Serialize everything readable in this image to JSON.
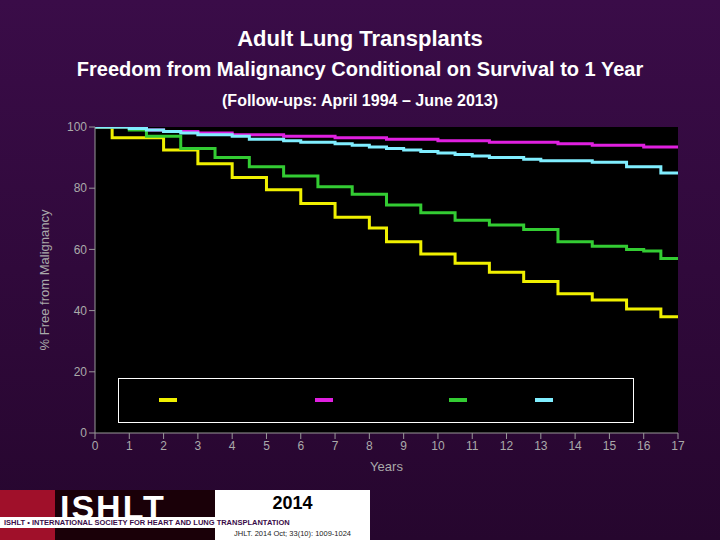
{
  "chart_data": {
    "type": "line",
    "line_style": "step",
    "title": "Adult Lung Transplants",
    "subtitle": [
      "Freedom from Malignancy Conditional on Survival to 1 Year",
      "(Follow-ups: April 1994 – June 2013)"
    ],
    "x_label": "Years",
    "y_label": "% Free from Malignancy",
    "x": [
      0,
      0.5,
      1,
      1.5,
      2,
      2.5,
      3,
      3.5,
      4,
      4.5,
      5,
      5.5,
      6,
      6.5,
      7,
      7.5,
      8,
      8.5,
      9,
      9.5,
      10,
      10.5,
      11,
      11.5,
      12,
      12.5,
      13,
      13.5,
      14,
      14.5,
      15,
      15.5,
      16,
      16.5,
      17
    ],
    "series": [
      {
        "color": "#f0f000",
        "values": [
          100,
          96.5,
          96.5,
          96.5,
          92.5,
          92.5,
          88,
          88,
          83.5,
          83.5,
          79.5,
          79.5,
          75,
          75,
          70.5,
          70.5,
          67,
          62.5,
          62.5,
          58.5,
          58.5,
          55.5,
          55.5,
          52.5,
          52.5,
          49.5,
          49.5,
          45.5,
          45.5,
          43.5,
          43.5,
          40.5,
          40.5,
          38,
          38
        ]
      },
      {
        "color": "#e020e0",
        "values": [
          100,
          100,
          99.5,
          99,
          98.5,
          98.5,
          98,
          98,
          97.5,
          97.5,
          97.5,
          97,
          97,
          97,
          96.5,
          96.5,
          96.5,
          96,
          96,
          96,
          95.5,
          95.5,
          95.5,
          95,
          95,
          95,
          95,
          94.5,
          94.5,
          94,
          94,
          94,
          93.5,
          93.5,
          93.5
        ]
      },
      {
        "color": "#33cc33",
        "values": [
          100,
          100,
          99,
          97,
          97,
          93,
          93,
          90,
          90,
          87,
          87,
          84,
          84,
          80.5,
          80.5,
          78,
          78,
          74.5,
          74.5,
          72,
          72,
          69.5,
          69.5,
          68,
          68,
          66.5,
          66.5,
          62.5,
          62.5,
          61,
          61,
          60,
          59.5,
          57,
          57
        ]
      },
      {
        "color": "#80eeff",
        "values": [
          100,
          100,
          99.5,
          99,
          98.5,
          98,
          97.5,
          97.5,
          97,
          96,
          96,
          95.5,
          95,
          95,
          94.5,
          94,
          93.5,
          93,
          92.5,
          92,
          91.5,
          91,
          90.5,
          90,
          90,
          89.5,
          89,
          89,
          89,
          88.5,
          88.5,
          87,
          87,
          85,
          85
        ]
      }
    ],
    "xlim": [
      0,
      17
    ],
    "xticks": [
      0,
      1,
      2,
      3,
      4,
      5,
      6,
      7,
      8,
      9,
      10,
      11,
      12,
      13,
      14,
      15,
      16,
      17
    ],
    "ylim": [
      0,
      100
    ],
    "yticks": [
      0,
      20,
      40,
      60,
      80,
      100
    ],
    "grid": false,
    "legend": "bottom",
    "annotations": {
      "logo": "ISHLT",
      "society": "ISHLT • INTERNATIONAL SOCIETY FOR HEART AND LUNG TRANSPLANTATION",
      "year": "2014",
      "citation": "JHLT. 2014 Oct; 33(10): 1009-1024"
    }
  }
}
